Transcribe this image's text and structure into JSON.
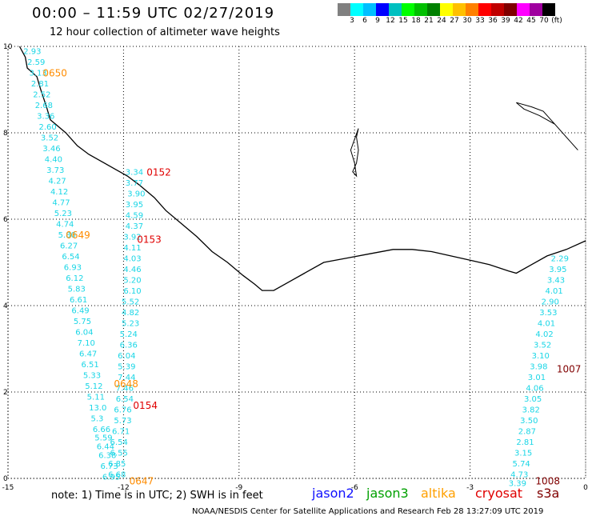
{
  "header": {
    "title": "00:00 – 11:59 UTC 02/27/2019",
    "subtitle": "12 hour collection of altimeter wave heights"
  },
  "colorbar": {
    "colors": [
      "#808080",
      "#00ffff",
      "#00bfff",
      "#0000ff",
      "#00c0c0",
      "#00ff00",
      "#00c000",
      "#008000",
      "#ffff00",
      "#ffc000",
      "#ff8000",
      "#ff0000",
      "#c00000",
      "#800000",
      "#ff00ff",
      "#a000a0",
      "#000000"
    ],
    "labels": [
      "3",
      "6",
      "9",
      "12",
      "15",
      "18",
      "21",
      "24",
      "27",
      "30",
      "33",
      "36",
      "39",
      "42",
      "45",
      "70",
      "(ft)"
    ]
  },
  "axes": {
    "x_ticks": [
      "-15",
      "-12",
      "-9",
      "-6",
      "-3",
      "0"
    ],
    "y_ticks": [
      "0",
      "2",
      "4",
      "6",
      "8",
      "10"
    ]
  },
  "tracks": [
    {
      "color": "#1ad6e6",
      "labels": [
        [
          "2.93",
          [
            -14.6,
            9.9
          ]
        ],
        [
          "2.59",
          [
            -14.5,
            9.65
          ]
        ],
        [
          "3.13",
          [
            -14.45,
            9.4
          ]
        ],
        [
          "2.81",
          [
            -14.4,
            9.15
          ]
        ],
        [
          "2.52",
          [
            -14.35,
            8.9
          ]
        ],
        [
          "2.68",
          [
            -14.3,
            8.65
          ]
        ],
        [
          "3.36",
          [
            -14.25,
            8.4
          ]
        ],
        [
          "2.60",
          [
            -14.2,
            8.15
          ]
        ],
        [
          "3.52",
          [
            -14.15,
            7.9
          ]
        ],
        [
          "3.46",
          [
            -14.1,
            7.65
          ]
        ],
        [
          "4.40",
          [
            -14.05,
            7.4
          ]
        ],
        [
          "3.73",
          [
            -14.0,
            7.15
          ]
        ],
        [
          "4.27",
          [
            -13.95,
            6.9
          ]
        ],
        [
          "4.12",
          [
            -13.9,
            6.65
          ]
        ],
        [
          "4.77",
          [
            -13.85,
            6.4
          ]
        ],
        [
          "5.23",
          [
            -13.8,
            6.15
          ]
        ],
        [
          "4.74",
          [
            -13.75,
            5.9
          ]
        ],
        [
          "5.80",
          [
            -13.7,
            5.65
          ]
        ],
        [
          "6.27",
          [
            -13.65,
            5.4
          ]
        ],
        [
          "6.54",
          [
            -13.6,
            5.15
          ]
        ],
        [
          "6.93",
          [
            -13.55,
            4.9
          ]
        ],
        [
          "6.12",
          [
            -13.5,
            4.65
          ]
        ],
        [
          "5.83",
          [
            -13.45,
            4.4
          ]
        ],
        [
          "6.61",
          [
            -13.4,
            4.15
          ]
        ],
        [
          "6.49",
          [
            -13.35,
            3.9
          ]
        ],
        [
          "5.75",
          [
            -13.3,
            3.65
          ]
        ],
        [
          "6.04",
          [
            -13.25,
            3.4
          ]
        ],
        [
          "7.10",
          [
            -13.2,
            3.15
          ]
        ],
        [
          "6.47",
          [
            -13.15,
            2.9
          ]
        ],
        [
          "6.51",
          [
            -13.1,
            2.65
          ]
        ],
        [
          "5.33",
          [
            -13.05,
            2.4
          ]
        ],
        [
          "5.12",
          [
            -13.0,
            2.15
          ]
        ],
        [
          "5.11",
          [
            -12.95,
            1.9
          ]
        ],
        [
          "13.0",
          [
            -12.9,
            1.65
          ]
        ],
        [
          "5.3",
          [
            -12.85,
            1.4
          ]
        ],
        [
          "6.66",
          [
            -12.8,
            1.15
          ]
        ],
        [
          "5.59",
          [
            -12.75,
            0.95
          ]
        ],
        [
          "6.44",
          [
            -12.7,
            0.75
          ]
        ],
        [
          "6.38",
          [
            -12.65,
            0.55
          ]
        ],
        [
          "6.73",
          [
            -12.6,
            0.3
          ]
        ],
        [
          "6.95",
          [
            -12.55,
            0.05
          ]
        ]
      ],
      "pass": [
        "0650",
        [
          -14.1,
          9.4
        ],
        "#ff8c00"
      ]
    },
    {
      "color": "#1ad6e6",
      "labels": [
        [
          "3.34",
          [
            -11.95,
            7.1
          ]
        ],
        [
          "3.77",
          [
            -11.95,
            6.85
          ]
        ],
        [
          "3.90",
          [
            -11.9,
            6.6
          ]
        ],
        [
          "3.95",
          [
            -11.95,
            6.35
          ]
        ],
        [
          "4.59",
          [
            -11.95,
            6.1
          ]
        ],
        [
          "4.37",
          [
            -11.95,
            5.85
          ]
        ],
        [
          "3.92",
          [
            -12.0,
            5.6
          ]
        ],
        [
          "4.11",
          [
            -12.0,
            5.35
          ]
        ],
        [
          "4.03",
          [
            -12.0,
            5.1
          ]
        ],
        [
          "4.46",
          [
            -12.0,
            4.85
          ]
        ],
        [
          "5.20",
          [
            -12.0,
            4.6
          ]
        ],
        [
          "6.10",
          [
            -12.0,
            4.35
          ]
        ],
        [
          "5.52",
          [
            -12.05,
            4.1
          ]
        ],
        [
          "4.82",
          [
            -12.05,
            3.85
          ]
        ],
        [
          "5.23",
          [
            -12.05,
            3.6
          ]
        ],
        [
          "5.24",
          [
            -12.1,
            3.35
          ]
        ],
        [
          "6.36",
          [
            -12.1,
            3.1
          ]
        ],
        [
          "6.04",
          [
            -12.15,
            2.85
          ]
        ],
        [
          "5.39",
          [
            -12.15,
            2.6
          ]
        ],
        [
          "7.44",
          [
            -12.15,
            2.35
          ]
        ],
        [
          "7.46",
          [
            -12.2,
            2.1
          ]
        ],
        [
          "6.54",
          [
            -12.2,
            1.85
          ]
        ],
        [
          "6.76",
          [
            -12.25,
            1.6
          ]
        ],
        [
          "5.73",
          [
            -12.25,
            1.35
          ]
        ],
        [
          "6.71",
          [
            -12.3,
            1.1
          ]
        ],
        [
          "6.54",
          [
            -12.35,
            0.85
          ]
        ],
        [
          "6.55",
          [
            -12.35,
            0.6
          ]
        ],
        [
          "6.85",
          [
            -12.4,
            0.35
          ]
        ],
        [
          "6.68",
          [
            -12.4,
            0.1
          ]
        ]
      ],
      "pass": [
        "0649",
        [
          -13.5,
          5.65
        ],
        "#ff8c00"
      ]
    },
    {
      "color": "#1ad6e6",
      "labels": [
        [
          "2.29",
          [
            -0.9,
            5.1
          ]
        ],
        [
          "3.95",
          [
            -0.95,
            4.85
          ]
        ],
        [
          "3.43",
          [
            -1.0,
            4.6
          ]
        ],
        [
          "4.01",
          [
            -1.05,
            4.35
          ]
        ],
        [
          "2.90",
          [
            -1.15,
            4.1
          ]
        ],
        [
          "3.53",
          [
            -1.2,
            3.85
          ]
        ],
        [
          "4.01",
          [
            -1.25,
            3.6
          ]
        ],
        [
          "4.02",
          [
            -1.3,
            3.35
          ]
        ],
        [
          "3.52",
          [
            -1.35,
            3.1
          ]
        ],
        [
          "3.10",
          [
            -1.4,
            2.85
          ]
        ],
        [
          "3.98",
          [
            -1.45,
            2.6
          ]
        ],
        [
          "3.01",
          [
            -1.5,
            2.35
          ]
        ],
        [
          "4.06",
          [
            -1.55,
            2.1
          ]
        ],
        [
          "3.05",
          [
            -1.6,
            1.85
          ]
        ],
        [
          "3.82",
          [
            -1.65,
            1.6
          ]
        ],
        [
          "3.50",
          [
            -1.7,
            1.35
          ]
        ],
        [
          "2.87",
          [
            -1.75,
            1.1
          ]
        ],
        [
          "2.81",
          [
            -1.8,
            0.85
          ]
        ],
        [
          "3.15",
          [
            -1.85,
            0.6
          ]
        ],
        [
          "5.74",
          [
            -1.9,
            0.35
          ]
        ],
        [
          "4.73",
          [
            -1.95,
            0.1
          ]
        ],
        [
          "3.39",
          [
            -2.0,
            -0.1
          ]
        ]
      ],
      "pass": [
        "1007",
        [
          -0.75,
          2.55
        ],
        "#800000"
      ]
    }
  ],
  "pass_labels": [
    {
      "text": "0152",
      "x": -11.4,
      "y": 7.1,
      "color": "#e00000"
    },
    {
      "text": "0153",
      "x": -11.65,
      "y": 5.55,
      "color": "#e00000"
    },
    {
      "text": "0648",
      "x": -12.25,
      "y": 2.2,
      "color": "#ff8c00"
    },
    {
      "text": "0154",
      "x": -11.75,
      "y": 1.7,
      "color": "#e00000"
    },
    {
      "text": "0647",
      "x": -11.85,
      "y": -0.05,
      "color": "#ff8c00"
    },
    {
      "text": "1008",
      "x": -1.3,
      "y": -0.05,
      "color": "#800000"
    }
  ],
  "footnote": "note:  1) Time is in UTC;  2) SWH is in feet",
  "legend": [
    {
      "name": "jason2",
      "color": "#1010ff"
    },
    {
      "name": "jason3",
      "color": "#00a000"
    },
    {
      "name": "altika",
      "color": "#ffa000"
    },
    {
      "name": "cryosat",
      "color": "#e00000"
    },
    {
      "name": "s3a",
      "color": "#800000"
    }
  ],
  "credit": "NOAA/NESDIS Center for Satellite Applications and Research     Feb 28 13:27:09 UTC 2019"
}
